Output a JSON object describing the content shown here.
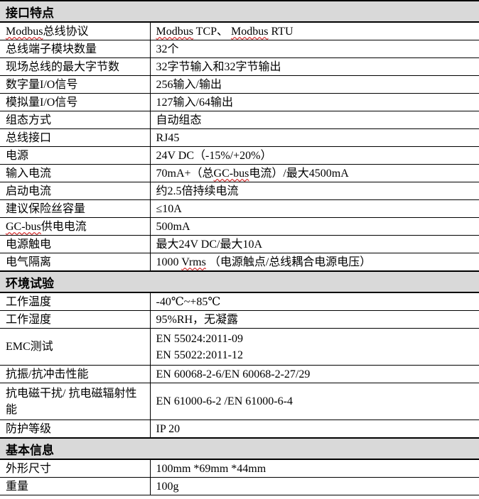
{
  "document": {
    "header_bg": "#d9d9d9",
    "spellcheck_underline_color": "#cc0000",
    "spellcheck_words": [
      "Modbus",
      "GC-bus",
      "Vrms"
    ],
    "sections": [
      {
        "title": "接口特点",
        "rows": [
          {
            "label": "Modbus总线协议",
            "value": "Modbus TCP、 Modbus RTU"
          },
          {
            "label": "总线端子模块数量",
            "value": "32个"
          },
          {
            "label": "现场总线的最大字节数",
            "value": "32字节输入和32字节输出"
          },
          {
            "label": "数字量I/O信号",
            "value": "256输入/输出"
          },
          {
            "label": "模拟量I/O信号",
            "value": "127输入/64输出"
          },
          {
            "label": "组态方式",
            "value": "自动组态"
          },
          {
            "label": "总线接口",
            "value": "RJ45"
          },
          {
            "label": "电源",
            "value": "24V DC（-15%/+20%）"
          },
          {
            "label": "输入电流",
            "value": "70mA+（总GC-bus电流）/最大4500mA"
          },
          {
            "label": "启动电流",
            "value": "约2.5倍持续电流"
          },
          {
            "label": "建议保险丝容量",
            "value": "≤10A"
          },
          {
            "label": "GC-bus供电电流",
            "value": "500mA"
          },
          {
            "label": "电源触电",
            "value": "最大24V DC/最大10A"
          },
          {
            "label": "电气隔离",
            "value": "1000 Vrms （电源触点/总线耦合电源电压）"
          }
        ]
      },
      {
        "title": "环境试验",
        "rows": [
          {
            "label": "工作温度",
            "value": "-40℃~+85℃"
          },
          {
            "label": "工作湿度",
            "value": "95%RH，无凝露"
          },
          {
            "label": "EMC测试",
            "value": "EN 55024:2011-09\nEN 55022:2011-12"
          },
          {
            "label": "抗振/抗冲击性能",
            "value": "EN 60068-2-6/EN 60068-2-27/29"
          },
          {
            "label": "抗电磁干扰/ 抗电磁辐射性能",
            "value": "EN 61000-6-2 /EN 61000-6-4"
          },
          {
            "label": "防护等级",
            "value": "IP 20"
          }
        ]
      },
      {
        "title": "基本信息",
        "rows": [
          {
            "label": "外形尺寸",
            "value": "100mm *69mm *44mm"
          },
          {
            "label": "重量",
            "value": "100g"
          }
        ]
      }
    ]
  }
}
